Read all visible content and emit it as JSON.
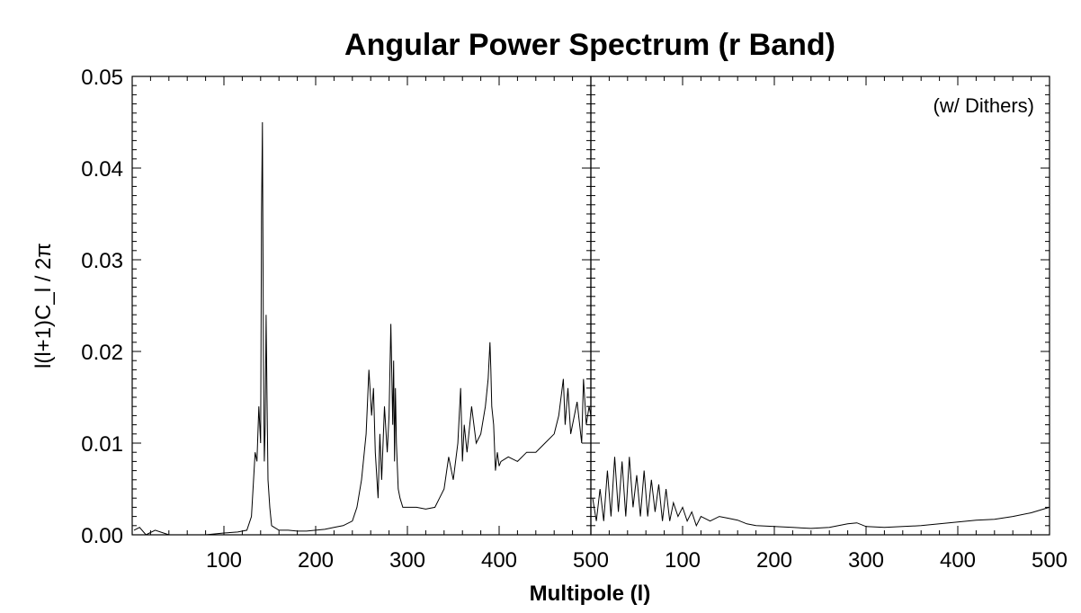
{
  "chart_data": {
    "type": "line",
    "title": "Angular Power Spectrum (r Band)",
    "xlabel": "Multipole (l)",
    "ylabel": "l(l+1)C_l / 2π",
    "ylim": [
      0,
      0.05
    ],
    "ytick_labels": [
      "0.00",
      "0.01",
      "0.02",
      "0.03",
      "0.04",
      "0.05"
    ],
    "yticks": [
      0,
      0.01,
      0.02,
      0.03,
      0.04,
      0.05
    ],
    "grid": false,
    "panels": [
      {
        "annotation": "",
        "xlim": [
          0,
          500
        ],
        "xticks": [
          100,
          200,
          300,
          400,
          500
        ],
        "xtick_labels": [
          "100",
          "200",
          "300",
          "400",
          "500"
        ],
        "series": [
          {
            "x": [
              2,
              8,
              15,
              25,
              40,
              60,
              80,
              100,
              115,
              125,
              130,
              134,
              136,
              138,
              140,
              141,
              142,
              143,
              144,
              145,
              146,
              147,
              148,
              150,
              152,
              155,
              160,
              170,
              180,
              190,
              200,
              210,
              220,
              230,
              240,
              245,
              250,
              255,
              258,
              261,
              263,
              265,
              268,
              270,
              272,
              275,
              278,
              280,
              282,
              284,
              285,
              286,
              287,
              288,
              290,
              292,
              295,
              300,
              310,
              320,
              330,
              335,
              340,
              345,
              350,
              355,
              358,
              360,
              362,
              365,
              370,
              375,
              380,
              385,
              388,
              390,
              391,
              392,
              394,
              396,
              398,
              400,
              402,
              410,
              420,
              430,
              440,
              450,
              460,
              465,
              470,
              472,
              475,
              478,
              480,
              485,
              490,
              492,
              495,
              498,
              500
            ],
            "y": [
              0.0005,
              0.0008,
              0.0,
              0.0005,
              0.0,
              0.0,
              0.0,
              0.0002,
              0.0003,
              0.0005,
              0.002,
              0.009,
              0.008,
              0.014,
              0.01,
              0.035,
              0.045,
              0.02,
              0.008,
              0.012,
              0.024,
              0.015,
              0.006,
              0.003,
              0.001,
              0.0008,
              0.0005,
              0.0005,
              0.0004,
              0.0004,
              0.0005,
              0.0006,
              0.0008,
              0.001,
              0.0015,
              0.003,
              0.006,
              0.011,
              0.018,
              0.013,
              0.016,
              0.009,
              0.004,
              0.011,
              0.006,
              0.014,
              0.009,
              0.013,
              0.023,
              0.012,
              0.019,
              0.008,
              0.016,
              0.01,
              0.005,
              0.004,
              0.003,
              0.003,
              0.003,
              0.0028,
              0.003,
              0.004,
              0.005,
              0.0085,
              0.006,
              0.01,
              0.016,
              0.008,
              0.012,
              0.009,
              0.014,
              0.01,
              0.011,
              0.014,
              0.017,
              0.021,
              0.018,
              0.014,
              0.012,
              0.007,
              0.009,
              0.0075,
              0.008,
              0.0085,
              0.008,
              0.009,
              0.009,
              0.01,
              0.011,
              0.013,
              0.017,
              0.012,
              0.016,
              0.011,
              0.012,
              0.0145,
              0.01,
              0.017,
              0.012,
              0.014,
              0.013
            ]
          }
        ]
      },
      {
        "annotation": "(w/ Dithers)",
        "xlim": [
          0,
          500
        ],
        "xticks": [
          100,
          200,
          300,
          400,
          500
        ],
        "xtick_labels": [
          "100",
          "200",
          "300",
          "400",
          "500"
        ],
        "series": [
          {
            "x": [
              2,
              6,
              10,
              14,
              18,
              22,
              26,
              30,
              34,
              38,
              42,
              46,
              50,
              54,
              58,
              62,
              66,
              70,
              74,
              78,
              82,
              86,
              90,
              95,
              100,
              105,
              110,
              115,
              120,
              130,
              140,
              150,
              160,
              170,
              180,
              200,
              220,
              240,
              260,
              280,
              290,
              300,
              320,
              340,
              360,
              380,
              400,
              420,
              440,
              460,
              480,
              500
            ],
            "y": [
              0.004,
              0.0015,
              0.005,
              0.0015,
              0.007,
              0.002,
              0.0085,
              0.0025,
              0.008,
              0.002,
              0.0085,
              0.003,
              0.0065,
              0.002,
              0.007,
              0.002,
              0.006,
              0.0025,
              0.0055,
              0.0015,
              0.005,
              0.0015,
              0.0035,
              0.002,
              0.003,
              0.0015,
              0.0025,
              0.001,
              0.002,
              0.0015,
              0.002,
              0.0018,
              0.0016,
              0.0012,
              0.001,
              0.0009,
              0.0008,
              0.0007,
              0.0008,
              0.0012,
              0.0013,
              0.0009,
              0.0008,
              0.0009,
              0.001,
              0.0012,
              0.0014,
              0.0016,
              0.0017,
              0.002,
              0.0024,
              0.003
            ]
          }
        ]
      }
    ]
  }
}
